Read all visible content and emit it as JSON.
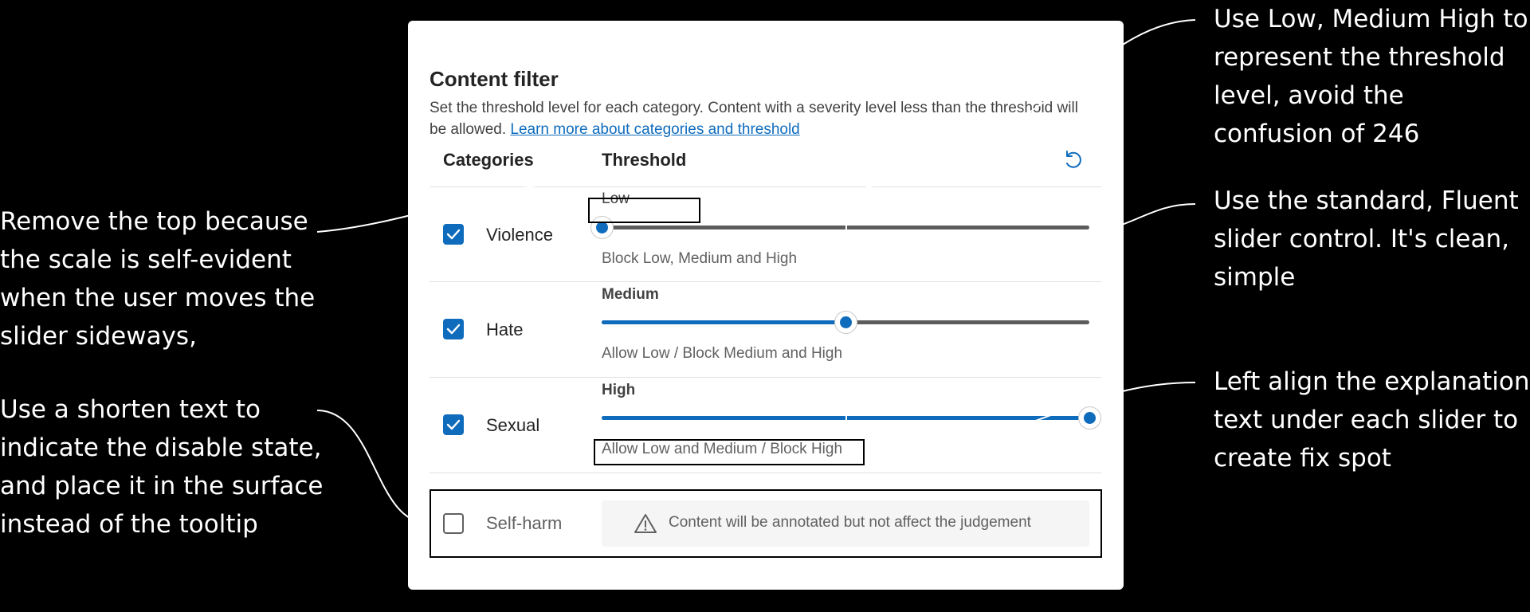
{
  "annotations": {
    "left_1": "Remove the top because the scale is self-evident when the user moves the slider sideways,",
    "left_2": "Use a shorten text to indicate the disable state, and place it in the surface instead of the tooltip",
    "right_1": "Use Low, Medium High to represent the threshold level, avoid the confusion of 246",
    "right_2": "Use the standard, Fluent slider control. It's clean, simple",
    "right_3": "Left align the explanation text under each slider to create fix spot"
  },
  "panel": {
    "title": "Content filter",
    "description": "Set the threshold level for each category. Content with a severity level less than the threshold will be allowed.",
    "learn_more_link": "Learn more about categories and threshold",
    "columns": {
      "categories": "Categories",
      "threshold": "Threshold"
    },
    "reset_icon": "reset-icon",
    "rows": [
      {
        "category": "Violence",
        "checked": true,
        "level": "Low",
        "level_fraction": 0.0,
        "explanation": "Block Low, Medium and High"
      },
      {
        "category": "Hate",
        "checked": true,
        "level": "Medium",
        "level_fraction": 0.5,
        "explanation": "Allow Low / Block Medium and High"
      },
      {
        "category": "Sexual",
        "checked": true,
        "level": "High",
        "level_fraction": 1.0,
        "explanation": "Allow Low and Medium / Block High"
      },
      {
        "category": "Self-harm",
        "checked": false,
        "disabled_message": "Content will be annotated but not affect the judgement",
        "disabled_icon": "warning-icon"
      }
    ]
  },
  "colors": {
    "accent": "#0f6cbd",
    "rail": "#5c5c5c",
    "background": "#000000",
    "surface": "#ffffff"
  }
}
